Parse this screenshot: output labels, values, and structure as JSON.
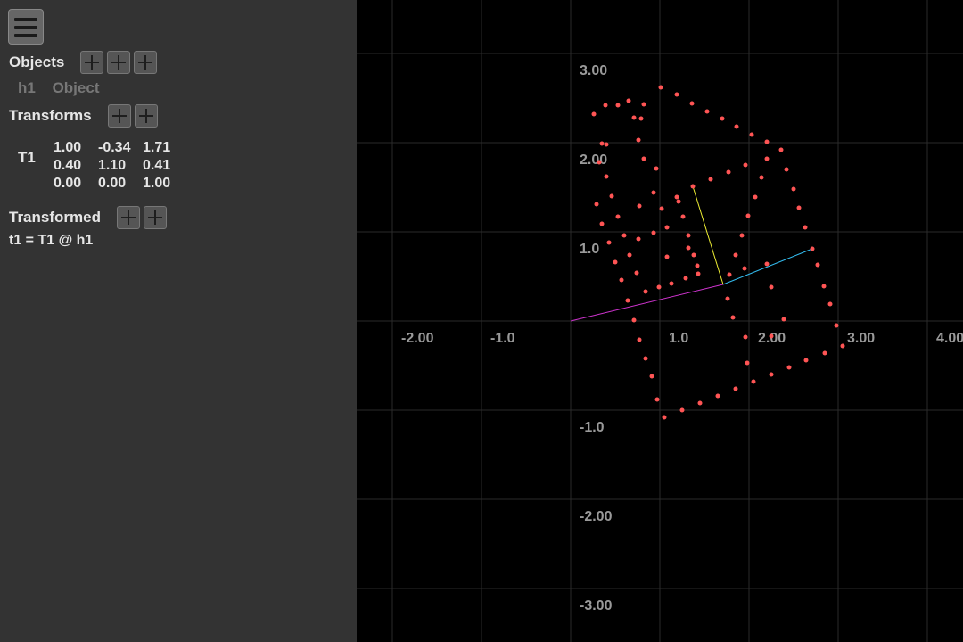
{
  "sidebar": {
    "objects_title": "Objects",
    "objects": [
      {
        "name": "h1",
        "type": "Object"
      }
    ],
    "transforms_title": "Transforms",
    "transform": {
      "name": "T1",
      "matrix": [
        [
          "1.00",
          "-0.34",
          "1.71"
        ],
        [
          "0.40",
          "1.10",
          "0.41"
        ],
        [
          "0.00",
          "0.00",
          "1.00"
        ]
      ]
    },
    "transformed_title": "Transformed",
    "expression": "t1 = T1 @ h1"
  },
  "plot": {
    "x_ticks": [
      "-2.00",
      "-1.0",
      "1.0",
      "2.00",
      "3.00",
      "4.00"
    ],
    "y_ticks": [
      "3.00",
      "2.00",
      "1.0",
      "-1.0",
      "-2.00",
      "-3.00"
    ],
    "colors": {
      "background": "#000000",
      "grid": "#2a2a2a",
      "points": "#ff5555",
      "x_basis": "#33bbee",
      "y_basis": "#eeee33",
      "translation": "#cc33cc"
    },
    "origin_vector": [
      1.71,
      0.41
    ],
    "x_basis_tip": [
      2.71,
      0.81
    ],
    "y_basis_tip": [
      1.37,
      1.51
    ],
    "points": [
      [
        0.26,
        2.32
      ],
      [
        0.39,
        2.42
      ],
      [
        0.53,
        2.42
      ],
      [
        0.65,
        2.47
      ],
      [
        1.01,
        2.62
      ],
      [
        1.19,
        2.54
      ],
      [
        1.36,
        2.44
      ],
      [
        1.53,
        2.35
      ],
      [
        1.7,
        2.27
      ],
      [
        1.86,
        2.18
      ],
      [
        2.03,
        2.09
      ],
      [
        2.2,
        2.01
      ],
      [
        2.36,
        1.92
      ],
      [
        2.42,
        1.7
      ],
      [
        2.5,
        1.48
      ],
      [
        2.56,
        1.27
      ],
      [
        2.63,
        1.05
      ],
      [
        2.71,
        0.81
      ],
      [
        2.77,
        0.63
      ],
      [
        2.84,
        0.39
      ],
      [
        2.91,
        0.19
      ],
      [
        2.98,
        -0.05
      ],
      [
        3.05,
        -0.28
      ],
      [
        2.85,
        -0.36
      ],
      [
        2.64,
        -0.44
      ],
      [
        2.45,
        -0.52
      ],
      [
        2.25,
        -0.6
      ],
      [
        2.05,
        -0.68
      ],
      [
        1.85,
        -0.76
      ],
      [
        1.65,
        -0.84
      ],
      [
        1.45,
        -0.92
      ],
      [
        1.25,
        -1.0
      ],
      [
        1.05,
        -1.08
      ],
      [
        0.97,
        -0.88
      ],
      [
        0.91,
        -0.62
      ],
      [
        0.84,
        -0.42
      ],
      [
        0.77,
        -0.21
      ],
      [
        0.71,
        0.01
      ],
      [
        0.64,
        0.23
      ],
      [
        0.57,
        0.46
      ],
      [
        0.5,
        0.66
      ],
      [
        0.43,
        0.88
      ],
      [
        0.35,
        1.09
      ],
      [
        0.29,
        1.31
      ],
      [
        0.32,
        1.78
      ],
      [
        0.4,
        1.62
      ],
      [
        0.46,
        1.4
      ],
      [
        0.53,
        1.17
      ],
      [
        0.6,
        0.96
      ],
      [
        0.66,
        0.74
      ],
      [
        0.74,
        0.54
      ],
      [
        0.84,
        0.33
      ],
      [
        0.99,
        0.38
      ],
      [
        1.13,
        0.42
      ],
      [
        1.29,
        0.48
      ],
      [
        1.43,
        0.53
      ],
      [
        1.38,
        0.74
      ],
      [
        1.32,
        0.96
      ],
      [
        1.26,
        1.17
      ],
      [
        1.19,
        1.39
      ],
      [
        1.37,
        1.51
      ],
      [
        1.57,
        1.59
      ],
      [
        1.77,
        1.67
      ],
      [
        1.96,
        1.75
      ],
      [
        2.2,
        1.82
      ],
      [
        2.14,
        1.61
      ],
      [
        2.07,
        1.39
      ],
      [
        1.99,
        1.18
      ],
      [
        1.92,
        0.96
      ],
      [
        1.85,
        0.74
      ],
      [
        1.78,
        0.52
      ],
      [
        1.95,
        0.59
      ],
      [
        2.2,
        0.64
      ],
      [
        2.25,
        0.38
      ],
      [
        2.39,
        0.02
      ],
      [
        2.25,
        -0.17
      ],
      [
        1.98,
        -0.47
      ],
      [
        1.96,
        -0.18
      ],
      [
        1.82,
        0.04
      ],
      [
        1.76,
        0.25
      ],
      [
        0.76,
        0.92
      ],
      [
        0.93,
        0.99
      ],
      [
        1.08,
        1.05
      ],
      [
        1.02,
        1.26
      ],
      [
        0.93,
        1.44
      ],
      [
        0.77,
        1.29
      ],
      [
        0.82,
        1.82
      ],
      [
        0.76,
        2.03
      ],
      [
        0.79,
        2.27
      ],
      [
        0.71,
        2.28
      ],
      [
        0.82,
        2.43
      ],
      [
        0.96,
        1.71
      ],
      [
        1.21,
        1.34
      ],
      [
        1.32,
        0.82
      ],
      [
        1.42,
        0.62
      ],
      [
        1.08,
        0.72
      ],
      [
        0.35,
        1.99
      ],
      [
        0.4,
        1.98
      ]
    ]
  }
}
